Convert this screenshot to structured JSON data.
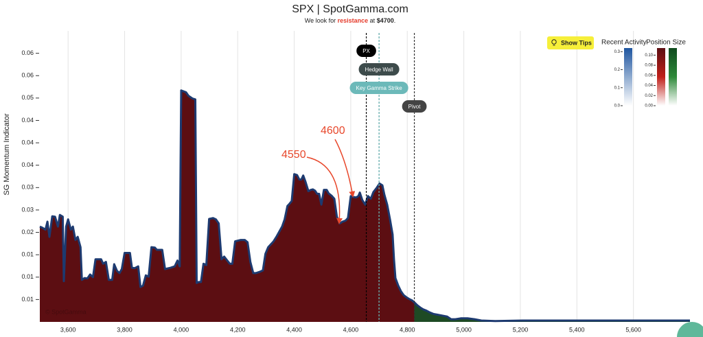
{
  "chart_data": {
    "type": "area",
    "title": "SPX | SpotGamma.com",
    "subtitle_parts": [
      "We look for",
      "resistance",
      "at",
      "$4700",
      "."
    ],
    "ylabel": "SG Momentum Indicator",
    "watermark": "© SpotGamma",
    "button": "Show Tips",
    "x": [
      3500,
      3510,
      3520,
      3527,
      3534,
      3544,
      3554,
      3564,
      3571,
      3581,
      3585,
      3593,
      3600,
      3610,
      3617,
      3626,
      3634,
      3644,
      3649,
      3658,
      3668,
      3678,
      3688,
      3697,
      3717,
      3724,
      3734,
      3744,
      3756,
      3763,
      3773,
      3782,
      3790,
      3800,
      3819,
      3826,
      3836,
      3848,
      3856,
      3865,
      3875,
      3885,
      3895,
      3907,
      3914,
      3933,
      3943,
      3963,
      3977,
      3987,
      3995,
      4000,
      4017,
      4026,
      4040,
      4050,
      4055,
      4062,
      4070,
      4079,
      4089,
      4099,
      4113,
      4123,
      4133,
      4143,
      4152,
      4162,
      4172,
      4181,
      4191,
      4211,
      4225,
      4235,
      4245,
      4255,
      4264,
      4279,
      4289,
      4298,
      4308,
      4327,
      4337,
      4357,
      4366,
      4376,
      4381,
      4391,
      4400,
      4410,
      4418,
      4425,
      4432,
      4440,
      4450,
      4459,
      4466,
      4474,
      4481,
      4488,
      4496,
      4505,
      4515,
      4522,
      4532,
      4542,
      4551,
      4561,
      4571,
      4581,
      4590,
      4600,
      4610,
      4619,
      4627,
      4632,
      4641,
      4651,
      4661,
      4671,
      4680,
      4690,
      4702,
      4712,
      4719,
      4729,
      4739,
      4748,
      4753,
      4758,
      4768,
      4778,
      4787,
      4797,
      4807,
      4817,
      4826,
      4836,
      4846,
      4856,
      4868,
      4880,
      4892,
      4916,
      4941,
      4955,
      4970,
      4989,
      5013,
      5038,
      5062,
      5111,
      5208,
      5305,
      5427,
      5549,
      5670,
      5800
    ],
    "series": [
      {
        "color": "#1d3a70",
        "fill": "#5c0e12",
        "fill_beyond_pivot": "#1e4a24",
        "values": [
          0.0213,
          0.021,
          0.0206,
          0.0224,
          0.019,
          0.0236,
          0.0235,
          0.0213,
          0.0239,
          0.0235,
          0.0091,
          0.0213,
          0.0229,
          0.0206,
          0.0213,
          0.0183,
          0.019,
          0.0167,
          0.0094,
          0.0098,
          0.0097,
          0.0106,
          0.01,
          0.014,
          0.014,
          0.013,
          0.0134,
          0.0094,
          0.0094,
          0.0129,
          0.0114,
          0.0109,
          0.0118,
          0.0154,
          0.0154,
          0.0121,
          0.012,
          0.0124,
          0.0078,
          0.0081,
          0.0104,
          0.0101,
          0.0167,
          0.0166,
          0.0161,
          0.0161,
          0.0118,
          0.0121,
          0.0124,
          0.0137,
          0.0124,
          0.0517,
          0.0513,
          0.0505,
          0.0499,
          0.0497,
          0.0087,
          0.0089,
          0.0089,
          0.013,
          0.0127,
          0.023,
          0.0232,
          0.0229,
          0.022,
          0.014,
          0.0146,
          0.0138,
          0.013,
          0.013,
          0.018,
          0.0183,
          0.0183,
          0.0178,
          0.0134,
          0.0109,
          0.0109,
          0.0112,
          0.0115,
          0.0152,
          0.0167,
          0.018,
          0.019,
          0.0213,
          0.0229,
          0.0259,
          0.0262,
          0.027,
          0.033,
          0.0328,
          0.0318,
          0.0318,
          0.0327,
          0.0313,
          0.0292,
          0.0295,
          0.0296,
          0.0293,
          0.0286,
          0.0286,
          0.0262,
          0.0295,
          0.0295,
          0.0287,
          0.0282,
          0.0275,
          0.0235,
          0.022,
          0.0224,
          0.0226,
          0.0232,
          0.0281,
          0.0279,
          0.0278,
          0.0281,
          0.0289,
          0.0272,
          0.0262,
          0.0281,
          0.0275,
          0.029,
          0.0298,
          0.0309,
          0.0305,
          0.0284,
          0.0262,
          0.0229,
          0.0195,
          0.014,
          0.0098,
          0.0081,
          0.0068,
          0.006,
          0.0055,
          0.0051,
          0.0048,
          0.0043,
          0.0037,
          0.0032,
          0.0028,
          0.0025,
          0.0021,
          0.0018,
          0.0015,
          0.0012,
          0.0006,
          0.0006,
          0.0008,
          0.0008,
          0.0006,
          0.0003,
          0.0002,
          0.0003,
          0.0003,
          0.0003,
          0.0003,
          0.0003,
          0.0003
        ]
      }
    ],
    "xlim": [
      3500,
      5800
    ],
    "xticks": [
      {
        "value": 3600,
        "label": "3,600"
      },
      {
        "value": 3800,
        "label": "3,800"
      },
      {
        "value": 4000,
        "label": "4,000"
      },
      {
        "value": 4200,
        "label": "4,200"
      },
      {
        "value": 4400,
        "label": "4,400"
      },
      {
        "value": 4600,
        "label": "4,600"
      },
      {
        "value": 4800,
        "label": "4,800"
      },
      {
        "value": 5000,
        "label": "5,000"
      },
      {
        "value": 5200,
        "label": "5,200"
      },
      {
        "value": 5400,
        "label": "5,400"
      },
      {
        "value": 5600,
        "label": "5,600"
      }
    ],
    "ylim": [
      0,
      0.065
    ],
    "yticks": [
      {
        "value": 0.005,
        "label": "0.01"
      },
      {
        "value": 0.01,
        "label": "0.01"
      },
      {
        "value": 0.015,
        "label": "0.01"
      },
      {
        "value": 0.02,
        "label": "0.02"
      },
      {
        "value": 0.025,
        "label": "0.03"
      },
      {
        "value": 0.03,
        "label": "0.03"
      },
      {
        "value": 0.035,
        "label": "0.04"
      },
      {
        "value": 0.04,
        "label": "0.04"
      },
      {
        "value": 0.045,
        "label": "0.04"
      },
      {
        "value": 0.05,
        "label": "0.05"
      },
      {
        "value": 0.055,
        "label": "0.06"
      },
      {
        "value": 0.06,
        "label": "0.06"
      }
    ],
    "grid": true,
    "levels": [
      {
        "name": "PX",
        "value": 4655,
        "color": "#000000",
        "line": "#000000"
      },
      {
        "name": "Hedge Wall",
        "value": 4700,
        "color": "#3d4b4b",
        "line": "#3d4b4b"
      },
      {
        "name": "Key Gamma Strike",
        "value": 4700,
        "color": "#6cb9b9",
        "line": "#6cb9b9"
      },
      {
        "name": "Pivot",
        "value": 4825,
        "color": "#444444",
        "line": "#333333"
      }
    ],
    "annotations": [
      "4600",
      "4550"
    ],
    "colorbars": [
      {
        "title": "Recent Activity",
        "colors": [
          [
            "#ffffff",
            "#1f56a0"
          ]
        ],
        "lim": [
          0,
          0.32
        ],
        "ticks": [
          {
            "value": 0,
            "label": "0.0"
          },
          0.1,
          0.2,
          0.3
        ]
      },
      {
        "title": "Position Size",
        "colors": [
          [
            "#ffffff",
            "#c0201a",
            "#5c0e12"
          ],
          [
            "#ffffff",
            "#2f8a3a",
            "#0f4a1e"
          ]
        ],
        "lim": [
          0,
          0.114
        ],
        "ticks": [
          {
            "value": 0,
            "label": "0.00"
          },
          {
            "value": 0.02,
            "label": "0.02"
          },
          {
            "value": 0.04,
            "label": "0.04"
          },
          {
            "value": 0.06,
            "label": "0.06"
          },
          {
            "value": 0.08,
            "label": "0.08"
          },
          {
            "value": 0.1,
            "label": "0.10"
          }
        ]
      }
    ]
  }
}
